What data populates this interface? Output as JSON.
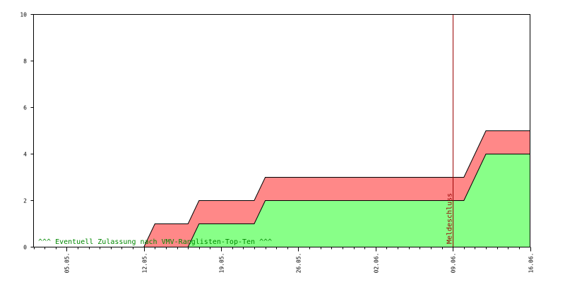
{
  "chart_data": {
    "type": "area",
    "title": "",
    "xlabel": "",
    "ylabel": "",
    "ylim": [
      0,
      10
    ],
    "y_ticks": [
      "0",
      "2",
      "4",
      "6",
      "8",
      "10"
    ],
    "x_domain": [
      "2025-05-02",
      "2025-06-16"
    ],
    "x_ticks": [
      {
        "date": "2025-05-05",
        "label": "05.05."
      },
      {
        "date": "2025-05-12",
        "label": "12.05."
      },
      {
        "date": "2025-05-19",
        "label": "19.05."
      },
      {
        "date": "2025-05-26",
        "label": "26.05."
      },
      {
        "date": "2025-06-02",
        "label": "02.06."
      },
      {
        "date": "2025-06-09",
        "label": "09.06."
      },
      {
        "date": "2025-06-16",
        "label": "16.06."
      }
    ],
    "series": [
      {
        "color": "#ff8888",
        "points": [
          [
            "2025-05-02",
            0
          ],
          [
            "2025-05-12",
            0
          ],
          [
            "2025-05-13",
            1
          ],
          [
            "2025-05-16",
            1
          ],
          [
            "2025-05-17",
            2
          ],
          [
            "2025-05-22",
            2
          ],
          [
            "2025-05-23",
            3
          ],
          [
            "2025-06-10",
            3
          ],
          [
            "2025-06-12",
            5
          ],
          [
            "2025-06-16",
            5
          ]
        ]
      },
      {
        "color": "#88ff88",
        "points": [
          [
            "2025-05-02",
            0
          ],
          [
            "2025-05-16",
            0
          ],
          [
            "2025-05-17",
            1
          ],
          [
            "2025-05-22",
            1
          ],
          [
            "2025-05-23",
            2
          ],
          [
            "2025-06-10",
            2
          ],
          [
            "2025-06-12",
            4
          ],
          [
            "2025-06-16",
            4
          ]
        ]
      }
    ],
    "marker": {
      "date": "2025-06-09",
      "label": "Meldeschluss",
      "color": "#990000"
    },
    "annotation": {
      "text": "^^^ Eventuell Zulassung nach VMV-Ranglisten-Top-Ten ^^^",
      "color": "#008800"
    },
    "grid": false
  }
}
